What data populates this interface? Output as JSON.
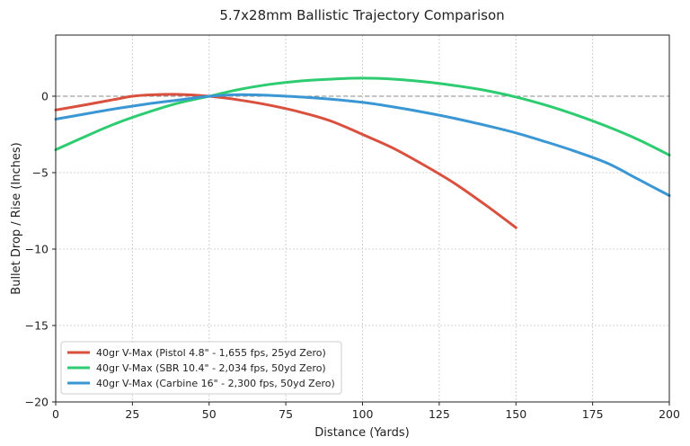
{
  "chart_data": {
    "type": "line",
    "title": "5.7x28mm Ballistic Trajectory Comparison",
    "xlabel": "Distance (Yards)",
    "ylabel": "Bullet Drop / Rise (Inches)",
    "xlim": [
      0,
      200
    ],
    "ylim": [
      -20,
      4
    ],
    "xticks": [
      0,
      25,
      50,
      75,
      100,
      125,
      150,
      175,
      200
    ],
    "yticks": [
      0,
      -5,
      -10,
      -15,
      -20
    ],
    "grid": true,
    "zero_line": true,
    "legend_position": "bottom-left",
    "series": [
      {
        "name": "40gr V-Max (Pistol 4.8\" - 1,655 fps, 25yd Zero)",
        "color": "#d9503f",
        "x": [
          0,
          10,
          20,
          25,
          30,
          40,
          50,
          60,
          70,
          80,
          90,
          100,
          110,
          120,
          130,
          140,
          150
        ],
        "y": [
          -0.9,
          -0.55,
          -0.18,
          0.0,
          0.08,
          0.12,
          0.0,
          -0.25,
          -0.6,
          -1.05,
          -1.65,
          -2.5,
          -3.4,
          -4.5,
          -5.7,
          -7.1,
          -8.6
        ]
      },
      {
        "name": "40gr V-Max (SBR 10.4\" - 2,034 fps, 50yd Zero)",
        "color": "#2ecc71",
        "x": [
          0,
          10,
          20,
          30,
          40,
          50,
          60,
          70,
          80,
          90,
          100,
          110,
          120,
          130,
          140,
          150,
          160,
          170,
          180,
          190,
          200
        ],
        "y": [
          -3.5,
          -2.6,
          -1.75,
          -1.05,
          -0.45,
          0.0,
          0.45,
          0.78,
          1.0,
          1.12,
          1.18,
          1.12,
          0.95,
          0.7,
          0.38,
          -0.05,
          -0.6,
          -1.25,
          -2.0,
          -2.85,
          -3.85
        ]
      },
      {
        "name": "40gr V-Max (Carbine 16\" - 2,300 fps, 50yd Zero)",
        "color": "#3a97d4",
        "x": [
          0,
          10,
          20,
          30,
          40,
          50,
          60,
          70,
          80,
          90,
          100,
          110,
          120,
          130,
          140,
          150,
          160,
          170,
          180,
          190,
          200
        ],
        "y": [
          -1.5,
          -1.15,
          -0.8,
          -0.5,
          -0.25,
          0.0,
          0.1,
          0.05,
          -0.05,
          -0.2,
          -0.4,
          -0.7,
          -1.05,
          -1.45,
          -1.9,
          -2.4,
          -3.0,
          -3.65,
          -4.4,
          -5.45,
          -6.5
        ]
      }
    ]
  }
}
